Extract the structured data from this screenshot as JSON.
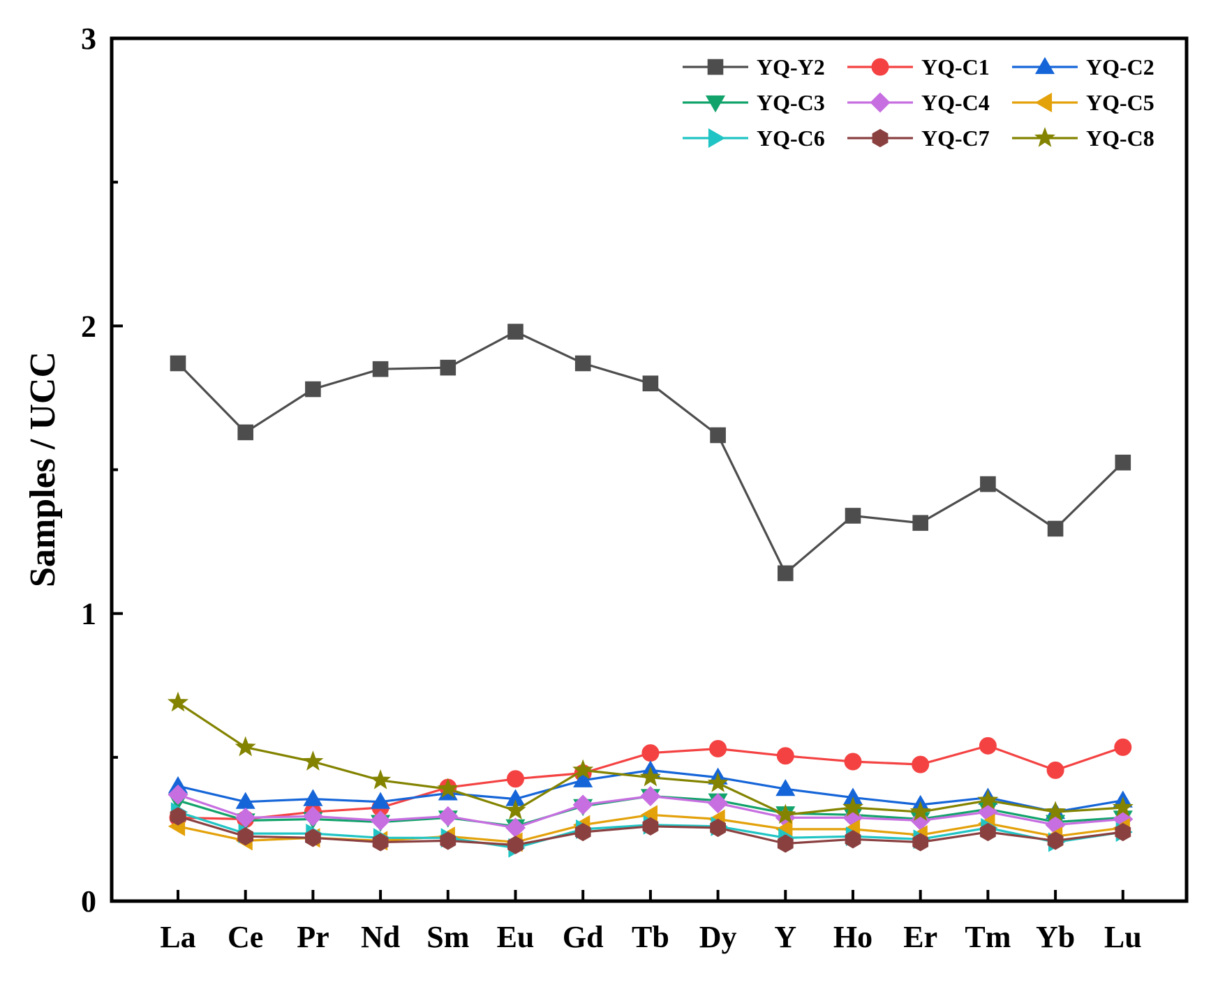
{
  "chart_data": {
    "type": "line",
    "title": "",
    "xlabel": "",
    "ylabel": "Samples / UCC",
    "ylim": [
      0,
      3
    ],
    "yticks": [
      0,
      1,
      2,
      3
    ],
    "minor_yticks": [
      0.5,
      1.5,
      2.5
    ],
    "grid": false,
    "legend_position": "top-right",
    "categories": [
      "La",
      "Ce",
      "Pr",
      "Nd",
      "Sm",
      "Eu",
      "Gd",
      "Tb",
      "Dy",
      "Y",
      "Ho",
      "Er",
      "Tm",
      "Yb",
      "Lu"
    ],
    "series": [
      {
        "name": "YQ-Y2",
        "color": "#4d4d4d",
        "marker": "square",
        "values": [
          1.87,
          1.63,
          1.78,
          1.85,
          1.855,
          1.98,
          1.87,
          1.8,
          1.62,
          1.14,
          1.34,
          1.315,
          1.45,
          1.295,
          1.525
        ]
      },
      {
        "name": "YQ-C1",
        "color": "#f44242",
        "marker": "circle",
        "values": [
          0.29,
          0.285,
          0.31,
          0.325,
          0.395,
          0.425,
          0.445,
          0.515,
          0.53,
          0.505,
          0.485,
          0.475,
          0.54,
          0.455,
          0.535
        ]
      },
      {
        "name": "YQ-C2",
        "color": "#1565d8",
        "marker": "triangle-up",
        "values": [
          0.4,
          0.345,
          0.355,
          0.345,
          0.375,
          0.355,
          0.42,
          0.455,
          0.43,
          0.39,
          0.36,
          0.335,
          0.36,
          0.31,
          0.35
        ]
      },
      {
        "name": "YQ-C3",
        "color": "#12a36b",
        "marker": "triangle-down",
        "values": [
          0.35,
          0.28,
          0.285,
          0.275,
          0.29,
          0.26,
          0.33,
          0.365,
          0.35,
          0.305,
          0.3,
          0.285,
          0.32,
          0.275,
          0.29
        ]
      },
      {
        "name": "YQ-C4",
        "color": "#c76ee0",
        "marker": "diamond",
        "values": [
          0.37,
          0.29,
          0.295,
          0.28,
          0.295,
          0.255,
          0.335,
          0.365,
          0.34,
          0.29,
          0.29,
          0.28,
          0.31,
          0.265,
          0.285
        ]
      },
      {
        "name": "YQ-C5",
        "color": "#e3a10a",
        "marker": "triangle-left",
        "values": [
          0.26,
          0.21,
          0.22,
          0.21,
          0.225,
          0.205,
          0.265,
          0.3,
          0.285,
          0.25,
          0.25,
          0.23,
          0.27,
          0.225,
          0.255
        ]
      },
      {
        "name": "YQ-C6",
        "color": "#20c4c4",
        "marker": "triangle-right",
        "values": [
          0.31,
          0.235,
          0.235,
          0.22,
          0.22,
          0.185,
          0.25,
          0.265,
          0.26,
          0.22,
          0.225,
          0.215,
          0.255,
          0.205,
          0.24
        ]
      },
      {
        "name": "YQ-C7",
        "color": "#8b4040",
        "marker": "hexagon",
        "values": [
          0.295,
          0.225,
          0.22,
          0.205,
          0.21,
          0.195,
          0.24,
          0.26,
          0.255,
          0.2,
          0.215,
          0.205,
          0.24,
          0.21,
          0.24
        ]
      },
      {
        "name": "YQ-C8",
        "color": "#838300",
        "marker": "star",
        "values": [
          0.69,
          0.535,
          0.485,
          0.42,
          0.39,
          0.315,
          0.455,
          0.43,
          0.41,
          0.3,
          0.325,
          0.31,
          0.35,
          0.31,
          0.325
        ]
      }
    ]
  }
}
